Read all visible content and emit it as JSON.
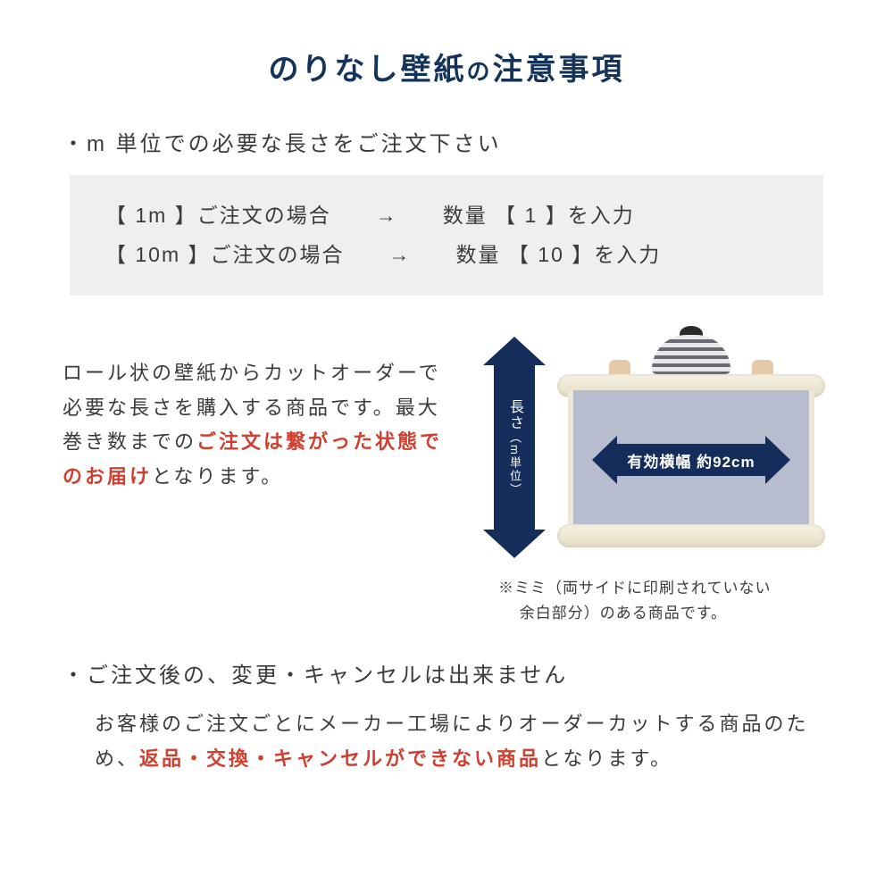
{
  "colors": {
    "title": "#13335a",
    "body_text": "#3a3a3a",
    "highlight_red": "#d04030",
    "example_bg": "#efefef",
    "arrow_fill": "#142d5a",
    "arrow_text": "#ffffff",
    "paper_fill": "#b7bdcf",
    "roll_cream": "#ece7d7",
    "page_bg": "#ffffff"
  },
  "typography": {
    "title_size_pt": 34,
    "title_sub_size_pt": 26,
    "bullet_size_pt": 24,
    "example_size_pt": 23,
    "body_size_pt": 22,
    "note_size_pt": 17,
    "h_arrow_label_pt": 17,
    "v_arrow_label_pt": 16
  },
  "title": {
    "main": "のりなし壁紙",
    "sub": "の",
    "tail": "注意事項"
  },
  "bullet1": "・m 単位での必要な長さをご注文下さい",
  "examples": {
    "row1": "【  1m  】ご注文の場合　　→　　数量 【  1  】を入力",
    "row2": "【 10m 】ご注文の場合　　→　　数量 【  10  】を入力"
  },
  "mid_text": {
    "part1": "ロール状の壁紙からカットオーダーで必要な長さを購入する商品です。最大巻き数までの",
    "part2_red": "ご注文は繋がった状態でのお届け",
    "part3": "となります。"
  },
  "diagram": {
    "v_arrow_label_main": "長さ",
    "v_arrow_label_sub": "（m単位）",
    "h_arrow_label": "有効横幅 約92cm",
    "effective_width_cm": 92,
    "note_line1": "※ミミ（両サイドに印刷されていない",
    "note_line2": "　 余白部分）のある商品です。"
  },
  "section2": {
    "title": "・ご注文後の、変更・キャンセルは出来ません",
    "body_part1": "お客様のご注文ごとにメーカー工場によりオーダーカットする商品のため、",
    "body_red": "返品・交換・キャンセルができない商品",
    "body_part2": "となります。"
  }
}
